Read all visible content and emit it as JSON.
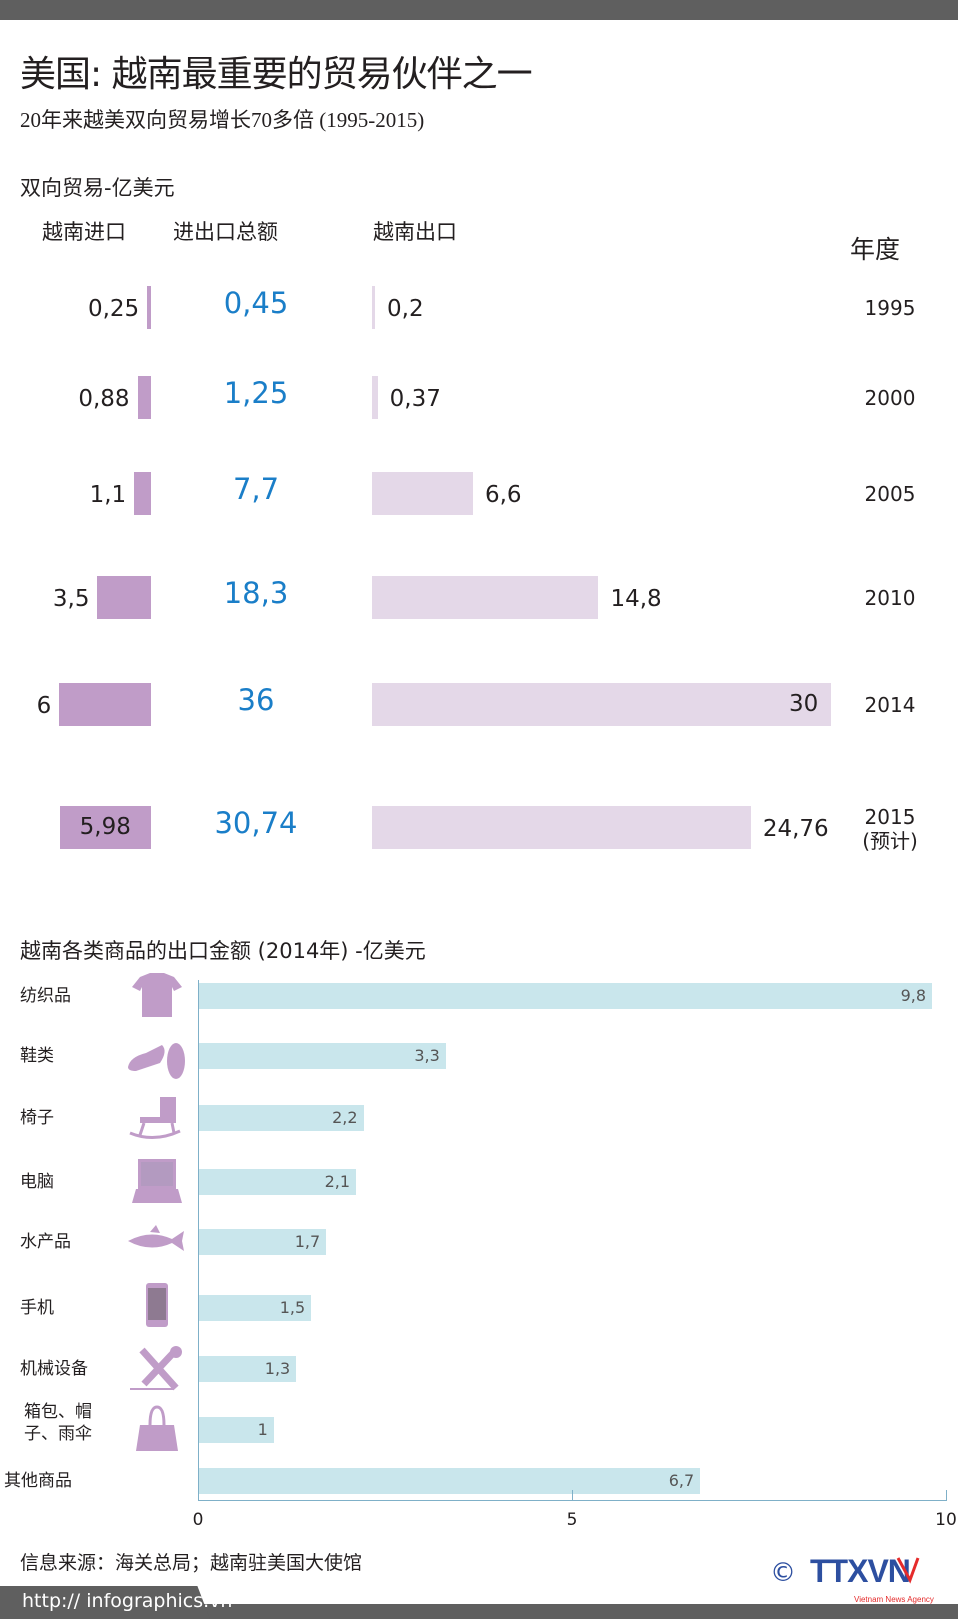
{
  "header": {
    "title": "美国: 越南最重要的贸易伙伴之一",
    "subtitle": "20年来越美双向贸易增长70多倍 (1995-2015)"
  },
  "trade": {
    "section_label": "双向贸易-亿美元",
    "columns": {
      "imports": "越南进口",
      "total": "进出口总额",
      "exports": "越南出口",
      "year": "年度"
    },
    "colors": {
      "imports": "#c09cc8",
      "exports": "#e4d8e8",
      "total": "#1a7ec8"
    },
    "rows": [
      {
        "year": "1995",
        "year_note": "",
        "imports": "0,25",
        "total": "0,45",
        "exports": "0,2",
        "imp_val": 0.25,
        "exp_val": 0.2
      },
      {
        "year": "2000",
        "year_note": "",
        "imports": "0,88",
        "total": "1,25",
        "exports": "0,37",
        "imp_val": 0.88,
        "exp_val": 0.37
      },
      {
        "year": "2005",
        "year_note": "",
        "imports": "1,1",
        "total": "7,7",
        "exports": "6,6",
        "imp_val": 1.1,
        "exp_val": 6.6
      },
      {
        "year": "2010",
        "year_note": "",
        "imports": "3,5",
        "total": "18,3",
        "exports": "14,8",
        "imp_val": 3.5,
        "exp_val": 14.8
      },
      {
        "year": "2014",
        "year_note": "",
        "imports": "6",
        "total": "36",
        "exports": "30",
        "imp_val": 6,
        "exp_val": 30
      },
      {
        "year": "2015",
        "year_note": "(预计)",
        "imports": "5,98",
        "total": "30,74",
        "exports": "24,76",
        "imp_val": 5.98,
        "exp_val": 24.76
      }
    ]
  },
  "chart_data": {
    "type": "bar",
    "title": "越南各类商品的出口金额 (2014年) -亿美元",
    "categories": [
      "纺织品",
      "鞋类",
      "椅子",
      "电脑",
      "水产品",
      "手机",
      "机械设备",
      "箱包、帽子、雨伞",
      "其他商品"
    ],
    "icons": [
      "tshirt-icon",
      "shoes-icon",
      "rocking-chair-icon",
      "laptop-icon",
      "fish-icon",
      "phone-icon",
      "tools-icon",
      "handbag-icon",
      ""
    ],
    "values": [
      9.8,
      3.3,
      2.2,
      2.1,
      1.7,
      1.5,
      1.3,
      1,
      6.7
    ],
    "value_labels": [
      "9,8",
      "3,3",
      "2,2",
      "2,1",
      "1,7",
      "1,5",
      "1,3",
      "1",
      "6,7"
    ],
    "xlim": [
      0,
      10
    ],
    "xticks": [
      "0",
      "5",
      "10"
    ],
    "bar_color": "#c9e6ec",
    "grid": false
  },
  "footer": {
    "source": "信息来源：海关总局；越南驻美国大使馆",
    "url": "http:// infographics.vn",
    "logo": "TTXVN",
    "logo_sub": "Vietnam News Agency",
    "copyright": "©"
  }
}
